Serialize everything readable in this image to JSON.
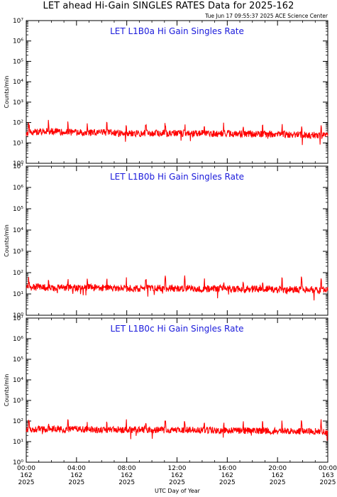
{
  "title": "LET ahead Hi-Gain SINGLES RATES Data for 2025-162",
  "timestamp": "Tue Jun 17 09:55:37 2025 ACE Science Center",
  "x_axis_title": "UTC Day of Year",
  "colors": {
    "data": "#ff0000",
    "panel_title": "#1a1adb",
    "axis": "#000000"
  },
  "chart_data": [
    {
      "type": "line",
      "title": "LET L1B0a Hi Gain Singles Rate",
      "ylabel": "Counts/min",
      "xlabel": "UTC Day of Year",
      "y_scale": "log",
      "ylim": [
        1,
        10000000
      ],
      "y_ticks": [
        1,
        10,
        100,
        1000,
        10000,
        100000,
        1000000,
        10000000
      ],
      "x_ticks": [
        {
          "time": "00:00",
          "day": "162",
          "year": "2025"
        },
        {
          "time": "04:00",
          "day": "162",
          "year": "2025"
        },
        {
          "time": "08:00",
          "day": "162",
          "year": "2025"
        },
        {
          "time": "12:00",
          "day": "162",
          "year": "2025"
        },
        {
          "time": "16:00",
          "day": "162",
          "year": "2025"
        },
        {
          "time": "20:00",
          "day": "162",
          "year": "2025"
        },
        {
          "time": "00:00",
          "day": "163",
          "year": "2025"
        }
      ],
      "xlim_hours": [
        0,
        24
      ],
      "series": [
        {
          "x_hours": [
            0,
            1,
            2,
            3,
            4,
            5,
            6,
            7,
            8,
            9,
            10,
            11,
            12,
            13,
            14,
            15,
            16,
            17,
            18,
            19,
            20,
            21,
            22,
            23,
            24
          ],
          "values": [
            32,
            35,
            38,
            34,
            33,
            31,
            33,
            32,
            30,
            29,
            30,
            31,
            30,
            29,
            30,
            28,
            29,
            28,
            27,
            27,
            26,
            26,
            25,
            24,
            23
          ]
        }
      ]
    },
    {
      "type": "line",
      "title": "LET L1B0b Hi Gain Singles Rate",
      "ylabel": "Counts/min",
      "xlabel": "UTC Day of Year",
      "y_scale": "log",
      "ylim": [
        1,
        10000000
      ],
      "y_ticks": [
        1,
        10,
        100,
        1000,
        10000,
        100000,
        1000000,
        10000000
      ],
      "x_ticks": [
        {
          "time": "00:00",
          "day": "162",
          "year": "2025"
        },
        {
          "time": "04:00",
          "day": "162",
          "year": "2025"
        },
        {
          "time": "08:00",
          "day": "162",
          "year": "2025"
        },
        {
          "time": "12:00",
          "day": "162",
          "year": "2025"
        },
        {
          "time": "16:00",
          "day": "162",
          "year": "2025"
        },
        {
          "time": "20:00",
          "day": "162",
          "year": "2025"
        },
        {
          "time": "00:00",
          "day": "163",
          "year": "2025"
        }
      ],
      "xlim_hours": [
        0,
        24
      ],
      "series": [
        {
          "x_hours": [
            0,
            1,
            2,
            3,
            4,
            5,
            6,
            7,
            8,
            9,
            10,
            11,
            12,
            13,
            14,
            15,
            16,
            17,
            18,
            19,
            20,
            21,
            22,
            23,
            24
          ],
          "values": [
            20,
            21,
            20,
            20,
            19,
            20,
            19,
            19,
            18,
            18,
            19,
            18,
            18,
            18,
            17,
            18,
            18,
            17,
            17,
            17,
            16,
            16,
            16,
            16,
            15
          ]
        }
      ]
    },
    {
      "type": "line",
      "title": "LET L1B0c Hi Gain Singles Rate",
      "ylabel": "Counts/min",
      "xlabel": "UTC Day of Year",
      "y_scale": "log",
      "ylim": [
        1,
        10000000
      ],
      "y_ticks": [
        1,
        10,
        100,
        1000,
        10000,
        100000,
        1000000,
        10000000
      ],
      "x_ticks": [
        {
          "time": "00:00",
          "day": "162",
          "year": "2025"
        },
        {
          "time": "04:00",
          "day": "162",
          "year": "2025"
        },
        {
          "time": "08:00",
          "day": "162",
          "year": "2025"
        },
        {
          "time": "12:00",
          "day": "162",
          "year": "2025"
        },
        {
          "time": "16:00",
          "day": "162",
          "year": "2025"
        },
        {
          "time": "20:00",
          "day": "162",
          "year": "2025"
        },
        {
          "time": "00:00",
          "day": "163",
          "year": "2025"
        }
      ],
      "xlim_hours": [
        0,
        24
      ],
      "series": [
        {
          "x_hours": [
            0,
            1,
            2,
            3,
            4,
            5,
            6,
            7,
            8,
            9,
            10,
            11,
            12,
            13,
            14,
            15,
            16,
            17,
            18,
            19,
            20,
            21,
            22,
            23,
            24
          ],
          "values": [
            40,
            41,
            40,
            39,
            40,
            39,
            38,
            37,
            37,
            38,
            37,
            36,
            37,
            36,
            36,
            35,
            35,
            35,
            34,
            34,
            33,
            33,
            32,
            31,
            30
          ]
        }
      ]
    }
  ]
}
